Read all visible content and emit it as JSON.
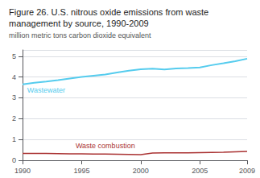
{
  "chart_data": {
    "type": "line",
    "title": "Figure 26. U.S. nitrous oxide emissions from waste\nmanagement by source, 1990-2009",
    "subtitle": "million metric tons carbon dioxide equivalent",
    "x": [
      1990,
      1991,
      1992,
      1993,
      1994,
      1995,
      1996,
      1997,
      1998,
      1999,
      2000,
      2001,
      2002,
      2003,
      2004,
      2005,
      2006,
      2007,
      2008,
      2009
    ],
    "series": [
      {
        "name": "Wastewater",
        "color": "#55CCEE",
        "values": [
          3.65,
          3.72,
          3.78,
          3.85,
          3.93,
          4.0,
          4.06,
          4.12,
          4.22,
          4.3,
          4.37,
          4.4,
          4.36,
          4.41,
          4.43,
          4.46,
          4.57,
          4.66,
          4.76,
          4.88
        ]
      },
      {
        "name": "Waste combustion",
        "color": "#AA3333",
        "values": [
          0.33,
          0.33,
          0.33,
          0.32,
          0.31,
          0.31,
          0.3,
          0.3,
          0.29,
          0.28,
          0.27,
          0.35,
          0.36,
          0.36,
          0.36,
          0.37,
          0.38,
          0.39,
          0.41,
          0.43
        ]
      }
    ],
    "xlim": [
      1990,
      2009
    ],
    "xticks": [
      1990,
      1995,
      2000,
      2005,
      2009
    ],
    "ylim": [
      0,
      5.3
    ],
    "yticks": [
      0,
      1,
      2,
      3,
      4,
      5
    ],
    "grid": true
  }
}
